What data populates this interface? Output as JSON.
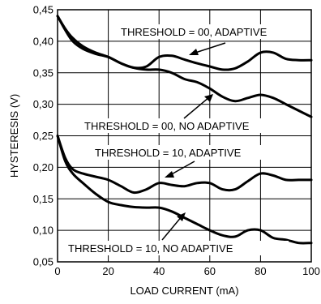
{
  "chart_data": {
    "type": "line",
    "title": "",
    "xlabel": "LOAD CURRENT (mA)",
    "ylabel": "HYSTERESIS (V)",
    "xlim": [
      0,
      100
    ],
    "ylim": [
      0.05,
      0.45
    ],
    "grid": true,
    "x_ticks": [
      "0",
      "20",
      "40",
      "60",
      "80",
      "100"
    ],
    "y_ticks": [
      "0,05",
      "0,10",
      "0,15",
      "0,20",
      "0,25",
      "0,30",
      "0,35",
      "0,40",
      "0,45"
    ],
    "series": [
      {
        "name": "THRESHOLD = 00,  ADAPTIVE",
        "x": [
          0,
          3,
          6,
          10,
          15,
          20,
          25,
          30,
          35,
          40,
          45,
          50,
          55,
          60,
          65,
          70,
          75,
          80,
          85,
          90,
          95,
          100
        ],
        "values": [
          0.44,
          0.418,
          0.4,
          0.388,
          0.38,
          0.375,
          0.365,
          0.358,
          0.36,
          0.375,
          0.377,
          0.371,
          0.365,
          0.36,
          0.355,
          0.357,
          0.368,
          0.382,
          0.382,
          0.372,
          0.37,
          0.37
        ]
      },
      {
        "name": "THRESHOLD = 00,  NO ADAPTIVE",
        "x": [
          0,
          3,
          6,
          10,
          15,
          20,
          25,
          30,
          35,
          40,
          45,
          50,
          55,
          60,
          65,
          70,
          75,
          80,
          85,
          90,
          95,
          100
        ],
        "values": [
          0.44,
          0.42,
          0.405,
          0.392,
          0.382,
          0.375,
          0.365,
          0.358,
          0.355,
          0.355,
          0.35,
          0.34,
          0.335,
          0.325,
          0.312,
          0.305,
          0.31,
          0.315,
          0.31,
          0.3,
          0.29,
          0.28
        ]
      },
      {
        "name": "THRESHOLD = 10,  ADAPTIVE",
        "x": [
          0,
          3,
          6,
          10,
          15,
          20,
          25,
          30,
          35,
          40,
          45,
          50,
          55,
          60,
          65,
          70,
          75,
          80,
          85,
          90,
          95,
          100
        ],
        "values": [
          0.25,
          0.215,
          0.197,
          0.19,
          0.185,
          0.18,
          0.17,
          0.16,
          0.165,
          0.175,
          0.172,
          0.17,
          0.175,
          0.175,
          0.165,
          0.165,
          0.178,
          0.19,
          0.187,
          0.18,
          0.18,
          0.18
        ]
      },
      {
        "name": "THRESHOLD = 10,  NO ADAPTIVE",
        "x": [
          0,
          3,
          6,
          10,
          15,
          20,
          25,
          30,
          35,
          40,
          45,
          50,
          55,
          60,
          65,
          70,
          75,
          80,
          85,
          90,
          95,
          100
        ],
        "values": [
          0.25,
          0.21,
          0.19,
          0.175,
          0.158,
          0.145,
          0.14,
          0.137,
          0.136,
          0.136,
          0.13,
          0.12,
          0.11,
          0.1,
          0.092,
          0.09,
          0.1,
          0.1,
          0.088,
          0.085,
          0.08,
          0.08
        ]
      }
    ]
  }
}
